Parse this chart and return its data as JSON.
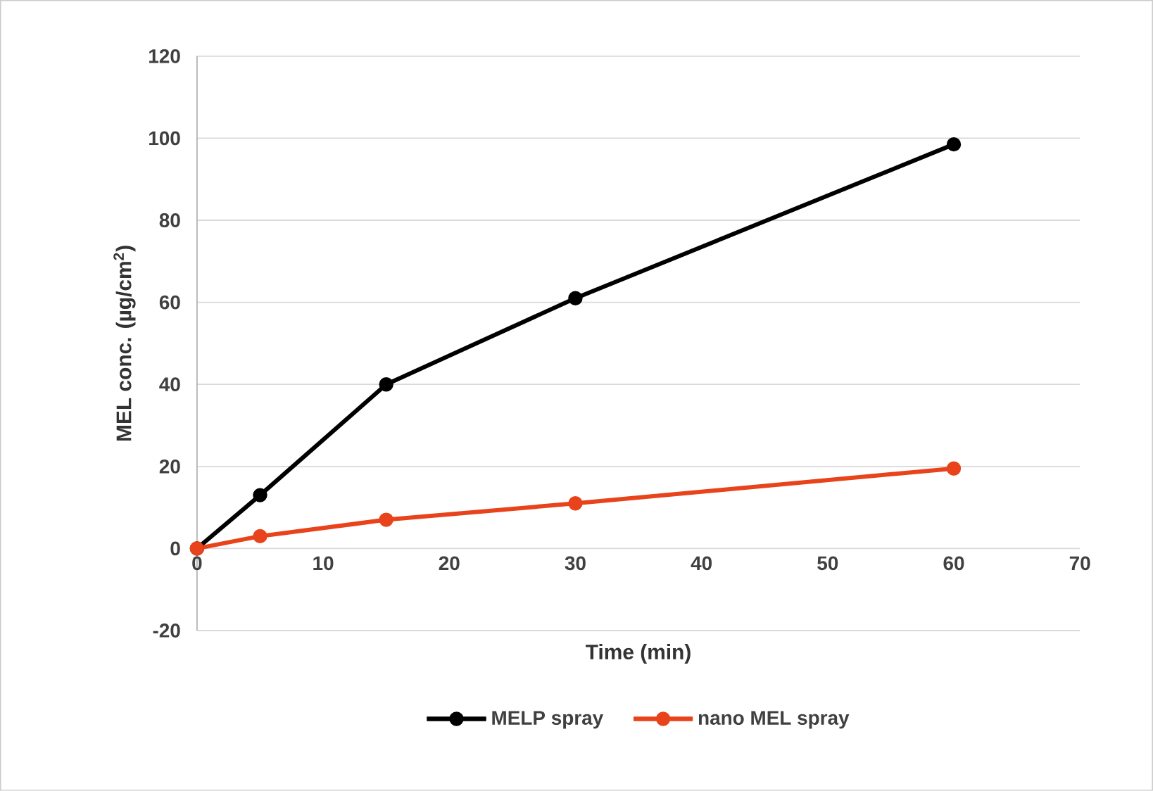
{
  "chart_data": {
    "type": "line",
    "xlabel": "Time (min)",
    "ylabel": "MEL conc. (µg/cm$^{2}$)",
    "xlim": [
      0,
      70
    ],
    "xticks": [
      0,
      10,
      20,
      30,
      40,
      50,
      60,
      70
    ],
    "ylim": [
      -20,
      120
    ],
    "yticks": [
      -20,
      0,
      20,
      40,
      60,
      80,
      100,
      120
    ],
    "grid": "y",
    "legend": "bottom",
    "marker": "circle",
    "line_style": "solid",
    "series": [
      {
        "name": "MELP spray",
        "color": "#000000",
        "x": [
          0,
          5,
          15,
          30,
          60
        ],
        "values": [
          0,
          13,
          40,
          61,
          98.5
        ]
      },
      {
        "name": "nano MEL spray",
        "color": "#e8431a",
        "x": [
          0,
          5,
          15,
          30,
          60
        ],
        "values": [
          0,
          3,
          7,
          11,
          19.5
        ]
      }
    ]
  }
}
